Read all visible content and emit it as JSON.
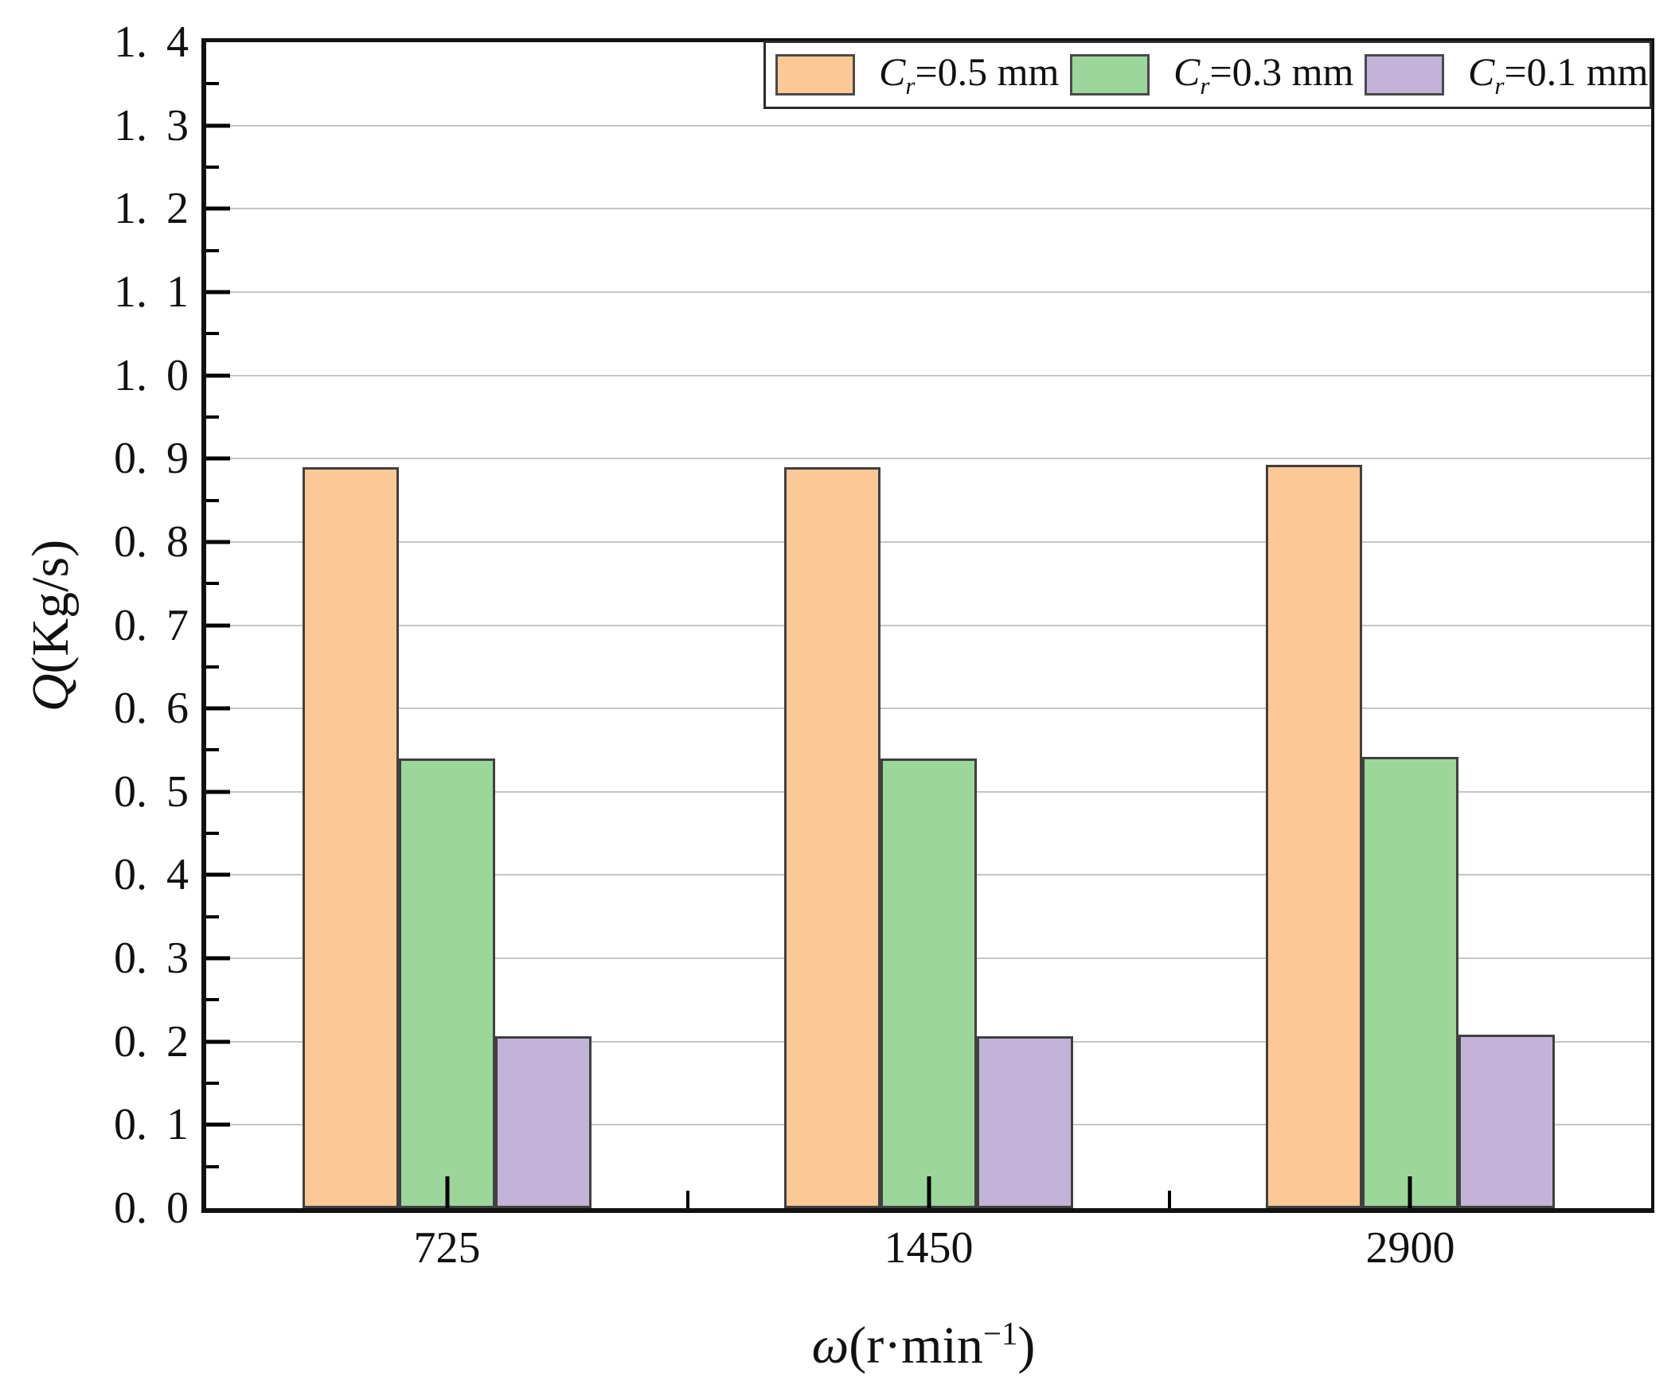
{
  "figure": {
    "background": "#ffffff"
  },
  "axes": {
    "y_title": {
      "italic": "Q",
      "rest": "(Kg/s)"
    },
    "x_title": {
      "italic": "ω",
      "pre": "(r·min",
      "sup": "−1",
      "post": ")"
    },
    "y_tick_labels": [
      "1. 4",
      "1. 3",
      "1. 2",
      "1. 1",
      "1. 0",
      "0. 9",
      "0. 8",
      "0. 7",
      "0. 6",
      "0. 5",
      "0. 4",
      "0. 3",
      "0. 2",
      "0. 1",
      "0. 0"
    ],
    "x_tick_labels": [
      "725",
      "1450",
      "2900"
    ]
  },
  "legend": {
    "items": [
      {
        "symbol": "C",
        "subscript": "r",
        "text": "=0.5 mm",
        "color": "#FBC896"
      },
      {
        "symbol": "C",
        "subscript": "r",
        "text": "=0.3 mm",
        "color": "#9BD79B"
      },
      {
        "symbol": "C",
        "subscript": "r",
        "text": "=0.1 mm",
        "color": "#C3B3D8"
      }
    ]
  },
  "chart_data": {
    "type": "bar",
    "categories": [
      "725",
      "1450",
      "2900"
    ],
    "series": [
      {
        "name": "Cr=0.5 mm",
        "color": "#FBC896",
        "values": [
          0.89,
          0.89,
          0.893
        ]
      },
      {
        "name": "Cr=0.3 mm",
        "color": "#9BD79B",
        "values": [
          0.54,
          0.54,
          0.542
        ]
      },
      {
        "name": "Cr=0.1 mm",
        "color": "#C3B3D8",
        "values": [
          0.206,
          0.206,
          0.208
        ]
      }
    ],
    "title": "",
    "xlabel": "ω(r·min⁻¹)",
    "ylabel": "Q(Kg/s)",
    "ylim": [
      0,
      1.4
    ],
    "ytick_step": 0.1,
    "minor_tick_step": 0.05,
    "grid": true,
    "grid_color": "#c6c6c6",
    "bar_border_color": "#404040",
    "legend_position": "upper-right-inside",
    "bar_group_fraction": 0.6
  }
}
